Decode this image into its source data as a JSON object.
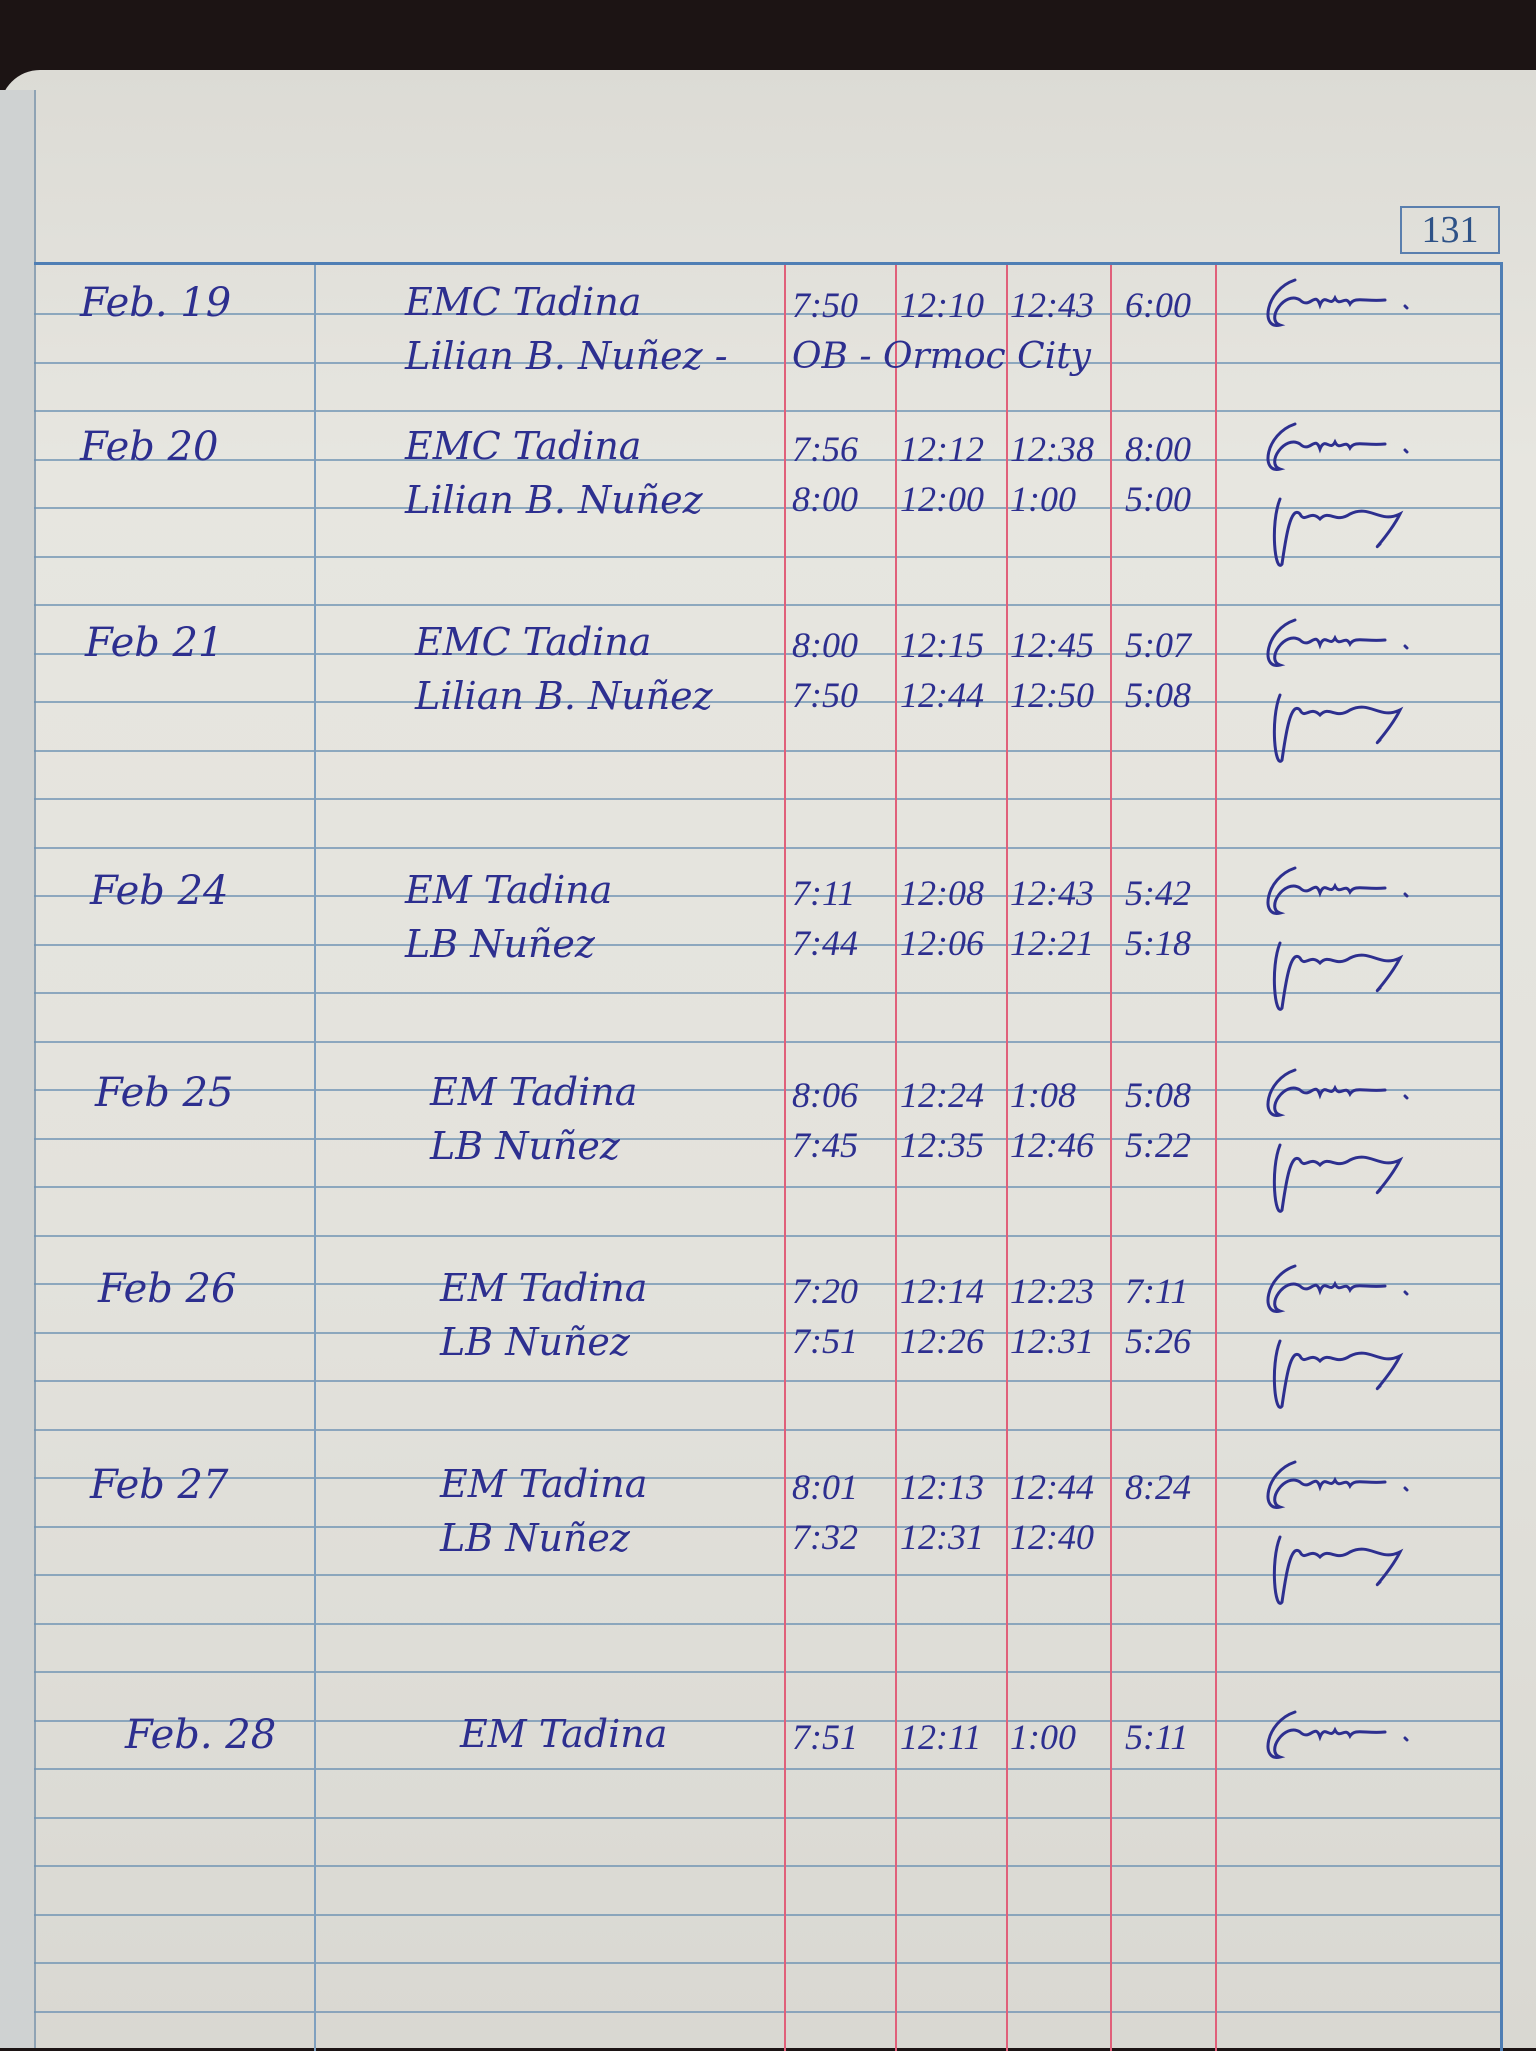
{
  "page_number": "131",
  "ink_color": "#2d2f8f",
  "entries": [
    {
      "date": "Feb. 19",
      "names": [
        "EMC Tadina",
        "Lilian B. Nuñez -"
      ],
      "times": [
        [
          "7:50",
          "12:10",
          "12:43",
          "6:00"
        ]
      ],
      "note": "OB - Ormoc City",
      "signatures": 1
    },
    {
      "date": "Feb 20",
      "names": [
        "EMC Tadina",
        "Lilian B. Nuñez"
      ],
      "times": [
        [
          "7:56",
          "12:12",
          "12:38",
          "8:00"
        ],
        [
          "8:00",
          "12:00",
          "1:00",
          "5:00"
        ]
      ],
      "signatures": 2
    },
    {
      "date": "Feb 21",
      "names": [
        "EMC Tadina",
        "Lilian B. Nuñez"
      ],
      "times": [
        [
          "8:00",
          "12:15",
          "12:45",
          "5:07"
        ],
        [
          "7:50",
          "12:44",
          "12:50",
          "5:08"
        ]
      ],
      "signatures": 2
    },
    {
      "date": "Feb 24",
      "names": [
        "EM Tadina",
        "LB Nuñez"
      ],
      "times": [
        [
          "7:11",
          "12:08",
          "12:43",
          "5:42"
        ],
        [
          "7:44",
          "12:06",
          "12:21",
          "5:18"
        ]
      ],
      "signatures": 2
    },
    {
      "date": "Feb 25",
      "names": [
        "EM Tadina",
        "LB Nuñez"
      ],
      "times": [
        [
          "8:06",
          "12:24",
          "1:08",
          "5:08"
        ],
        [
          "7:45",
          "12:35",
          "12:46",
          "5:22"
        ]
      ],
      "signatures": 2
    },
    {
      "date": "Feb 26",
      "names": [
        "EM Tadina",
        "LB Nuñez"
      ],
      "times": [
        [
          "7:20",
          "12:14",
          "12:23",
          "7:11"
        ],
        [
          "7:51",
          "12:26",
          "12:31",
          "5:26"
        ]
      ],
      "signatures": 2
    },
    {
      "date": "Feb 27",
      "names": [
        "EM Tadina",
        "LB Nuñez"
      ],
      "times": [
        [
          "8:01",
          "12:13",
          "12:44",
          "8:24"
        ],
        [
          "7:32",
          "12:31",
          "12:40",
          ""
        ]
      ],
      "signatures": 2
    },
    {
      "date": "Feb. 28",
      "names": [
        "EM Tadina"
      ],
      "times": [
        [
          "7:51",
          "12:11",
          "1:00",
          "5:11"
        ]
      ],
      "signatures": 1
    }
  ]
}
